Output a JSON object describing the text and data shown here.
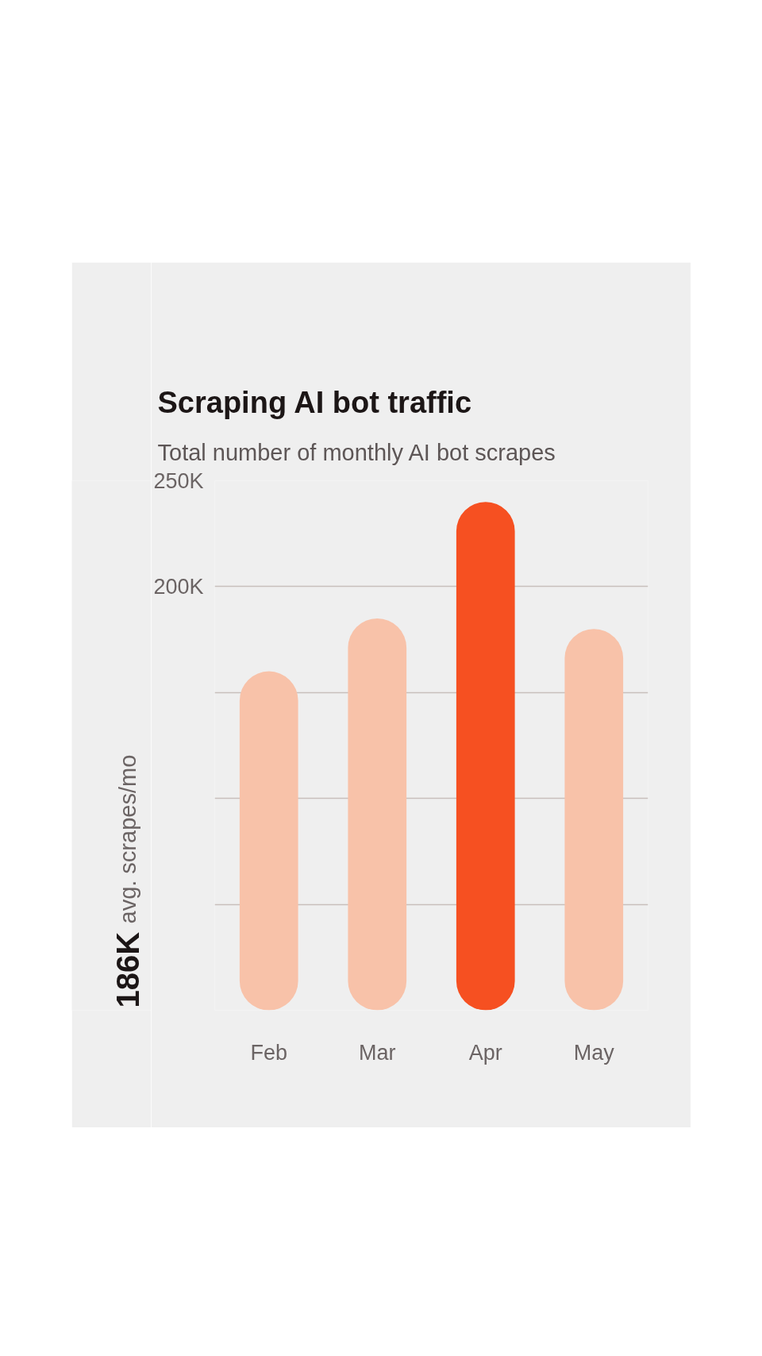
{
  "chart_data": {
    "type": "bar",
    "title": "Scraping AI bot traffic",
    "subtitle": "Total number of monthly AI bot scrapes",
    "categories": [
      "Feb",
      "Mar",
      "Apr",
      "May"
    ],
    "values": [
      160000,
      185000,
      240000,
      180000
    ],
    "colors": [
      "#f8c2a9",
      "#f8c2a9",
      "#f65021",
      "#f8c2a9"
    ],
    "ylim": [
      0,
      250000
    ],
    "yticks": [
      {
        "value": 0,
        "label": null
      },
      {
        "value": 50000,
        "label": null
      },
      {
        "value": 100000,
        "label": null
      },
      {
        "value": 150000,
        "label": null
      },
      {
        "value": 200000,
        "label": "200K"
      },
      {
        "value": 250000,
        "label": "250K"
      }
    ],
    "grid": "y",
    "annotations": [
      "186K",
      "avg. scrapes/mo"
    ]
  }
}
